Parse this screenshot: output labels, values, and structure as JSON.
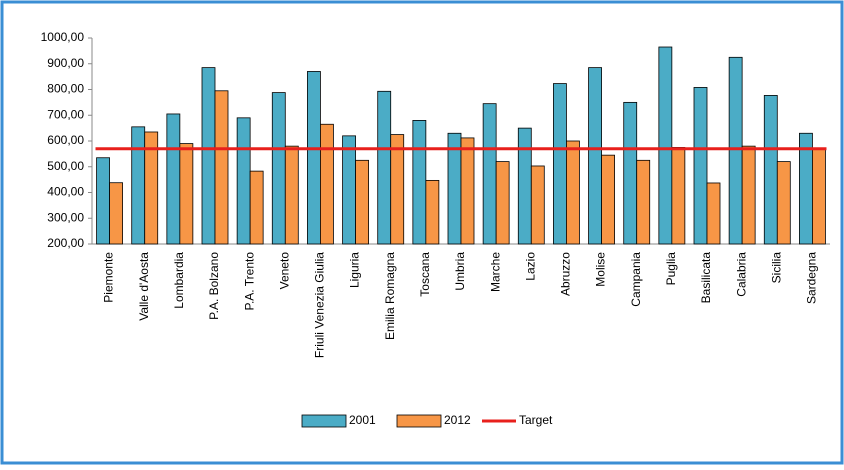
{
  "chart_data": {
    "type": "bar",
    "categories": [
      "Piemonte",
      "Valle d'Aosta",
      "Lombardia",
      "P.A. Bolzano",
      "P.A. Trento",
      "Veneto",
      "Friuli Venezia Giulia",
      "Liguria",
      "Emilia Romagna",
      "Toscana",
      "Umbria",
      "Marche",
      "Lazio",
      "Abruzzo",
      "Molise",
      "Campania",
      "Puglia",
      "Basilicata",
      "Calabria",
      "Sicilia",
      "Sardegna"
    ],
    "series": [
      {
        "name": "2001",
        "color": "#4bacc6",
        "values": [
          535,
          655,
          705,
          885,
          690,
          788,
          870,
          620,
          793,
          680,
          630,
          745,
          650,
          823,
          885,
          750,
          965,
          808,
          925,
          777,
          630
        ]
      },
      {
        "name": "2012",
        "color": "#f79646",
        "values": [
          438,
          635,
          590,
          795,
          483,
          580,
          665,
          525,
          625,
          447,
          612,
          520,
          503,
          600,
          545,
          525,
          575,
          437,
          580,
          520,
          568
        ]
      }
    ],
    "target": {
      "name": "Target",
      "value": 570,
      "color": "#e8201c"
    },
    "ylim": [
      200,
      1000
    ],
    "yticks": [
      {
        "value": 200,
        "label": "200,00"
      },
      {
        "value": 300,
        "label": "300,00"
      },
      {
        "value": 400,
        "label": "400,00"
      },
      {
        "value": 500,
        "label": "500,00"
      },
      {
        "value": 600,
        "label": "600,00"
      },
      {
        "value": 700,
        "label": "700,00"
      },
      {
        "value": 800,
        "label": "800,00"
      },
      {
        "value": 900,
        "label": "900,00"
      },
      {
        "value": 1000,
        "label": "1000,00"
      }
    ],
    "grid": false
  }
}
